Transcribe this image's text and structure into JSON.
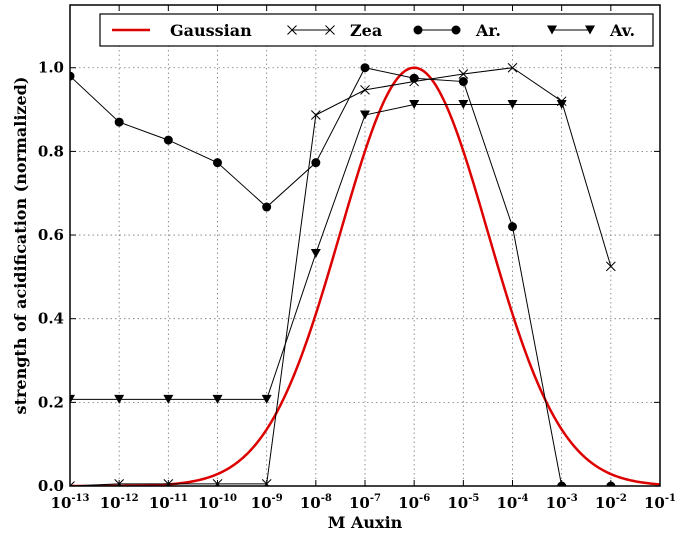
{
  "chart_data": {
    "type": "line",
    "xlabel": "M Auxin",
    "ylabel": "strength of acidification (normalized)",
    "xscale": "log",
    "xlim_exponent": [
      -13,
      -1
    ],
    "ylim": [
      0,
      1.15
    ],
    "grid": true,
    "legend_position": "top",
    "x_ticks": [
      {
        "base": "10",
        "exp": "-13"
      },
      {
        "base": "10",
        "exp": "-12"
      },
      {
        "base": "10",
        "exp": "-11"
      },
      {
        "base": "10",
        "exp": "-10"
      },
      {
        "base": "10",
        "exp": "-9"
      },
      {
        "base": "10",
        "exp": "-8"
      },
      {
        "base": "10",
        "exp": "-7"
      },
      {
        "base": "10",
        "exp": "-6"
      },
      {
        "base": "10",
        "exp": "-5"
      },
      {
        "base": "10",
        "exp": "-4"
      },
      {
        "base": "10",
        "exp": "-3"
      },
      {
        "base": "10",
        "exp": "-2"
      },
      {
        "base": "10",
        "exp": "-1"
      }
    ],
    "y_ticks": [
      "0.0",
      "0.2",
      "0.4",
      "0.6",
      "0.8",
      "1.0"
    ],
    "series": [
      {
        "name": "Gaussian",
        "color": "#dd0000",
        "marker": "none",
        "curve": {
          "center_exponent": -6,
          "sigma_exponent": 1.5,
          "peak": 1.0
        }
      },
      {
        "name": "Zea",
        "color": "#000000",
        "marker": "x",
        "x_exponent": [
          -13,
          -12,
          -11,
          -10,
          -9,
          -8,
          -7,
          -6,
          -5,
          -4,
          -3,
          -2
        ],
        "values": [
          0.0,
          0.005,
          0.005,
          0.005,
          0.005,
          0.887,
          0.947,
          0.967,
          0.985,
          1.0,
          0.92,
          0.525
        ]
      },
      {
        "name": "Ar.",
        "color": "#000000",
        "marker": "circle",
        "x_exponent": [
          -13,
          -12,
          -11,
          -10,
          -9,
          -8,
          -7,
          -6,
          -5,
          -4,
          -3,
          -2
        ],
        "values": [
          0.98,
          0.87,
          0.827,
          0.773,
          0.667,
          0.773,
          1.0,
          0.975,
          0.967,
          0.62,
          0.0,
          0.0
        ]
      },
      {
        "name": "Av.",
        "color": "#000000",
        "marker": "triangle-down",
        "x_exponent": [
          -13,
          -12,
          -11,
          -10,
          -9,
          -8,
          -7,
          -6,
          -5,
          -4,
          -3
        ],
        "values": [
          0.207,
          0.207,
          0.207,
          0.207,
          0.207,
          0.556,
          0.887,
          0.912,
          0.912,
          0.912,
          0.912
        ]
      }
    ]
  }
}
